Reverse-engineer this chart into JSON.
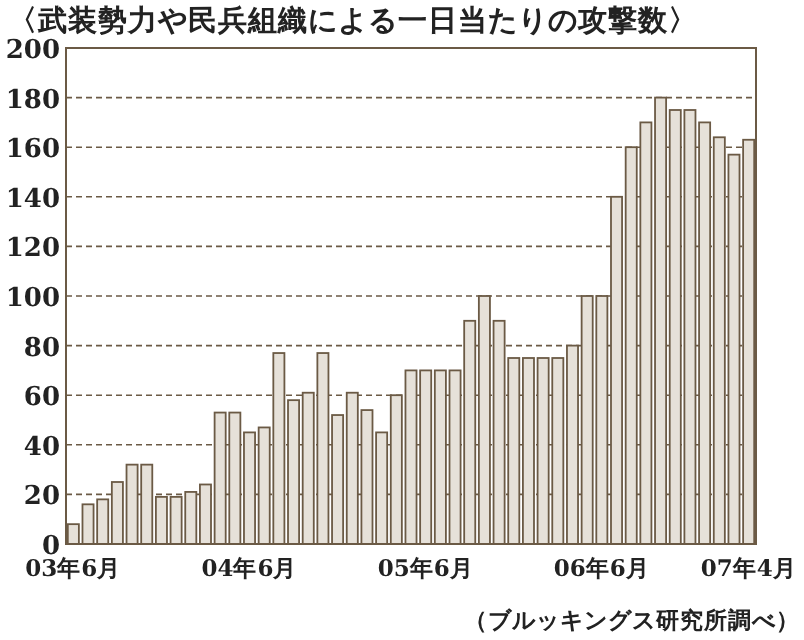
{
  "chart_data": {
    "type": "bar",
    "title": "〈武装勢力や民兵組織による一日当たりの攻撃数〉",
    "categories": [
      "03年6月",
      null,
      null,
      null,
      null,
      null,
      null,
      null,
      null,
      null,
      null,
      null,
      "04年6月",
      null,
      null,
      null,
      null,
      null,
      null,
      null,
      null,
      null,
      null,
      null,
      "05年6月",
      null,
      null,
      null,
      null,
      null,
      null,
      null,
      null,
      null,
      null,
      null,
      "06年6月",
      null,
      null,
      null,
      null,
      null,
      null,
      null,
      null,
      null,
      "07年4月"
    ],
    "values": [
      8,
      16,
      18,
      25,
      32,
      32,
      19,
      19,
      21,
      24,
      53,
      53,
      45,
      47,
      77,
      58,
      61,
      77,
      52,
      61,
      54,
      45,
      60,
      70,
      70,
      70,
      70,
      90,
      100,
      90,
      75,
      75,
      75,
      75,
      80,
      100,
      100,
      140,
      160,
      170,
      180,
      175,
      175,
      170,
      164,
      157,
      163
    ],
    "color": "#e6e1d9",
    "ylim": [
      0,
      200
    ],
    "yticks": [
      0,
      20,
      40,
      60,
      80,
      100,
      120,
      140,
      160,
      180,
      200
    ],
    "grid": "y",
    "annotations": [
      "（ブルッキングス研究所調べ）"
    ]
  }
}
